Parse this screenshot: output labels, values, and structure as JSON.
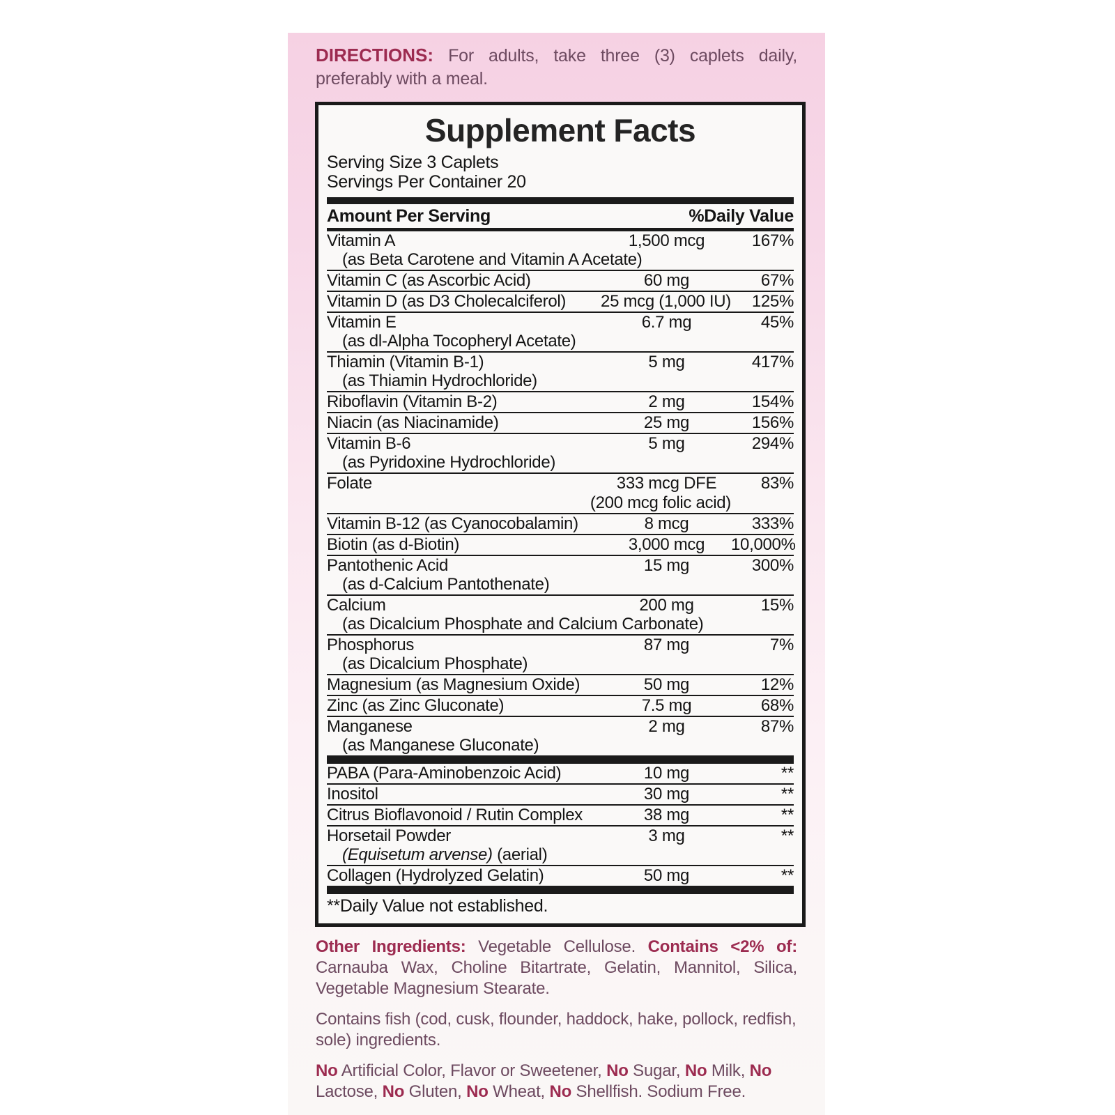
{
  "directions": {
    "label": "DIRECTIONS:",
    "text": "For adults, take three (3) caplets daily, preferably with a meal."
  },
  "facts": {
    "title": "Supplement Facts",
    "serving_size": "Serving Size 3 Caplets",
    "servings_per_container": "Servings Per Container 20",
    "columns": {
      "amount": "Amount Per Serving",
      "daily_value": "%Daily Value"
    },
    "rows": [
      {
        "name": "Vitamin A",
        "amount": "1,500 mcg",
        "dv": "167%",
        "sub": "(as Beta Carotene and Vitamin A Acetate)"
      },
      {
        "name": "Vitamin C (as Ascorbic Acid)",
        "amount": "60 mg",
        "dv": "67%"
      },
      {
        "name": "Vitamin D (as D3 Cholecalciferol)",
        "amount": "25 mcg (1,000 IU)",
        "dv": "125%"
      },
      {
        "name": "Vitamin E",
        "amount": "6.7 mg",
        "dv": "45%",
        "sub": "(as dl-Alpha Tocopheryl Acetate)"
      },
      {
        "name": "Thiamin (Vitamin B-1)",
        "amount": "5 mg",
        "dv": "417%",
        "sub": "(as Thiamin Hydrochloride)"
      },
      {
        "name": "Riboflavin (Vitamin B-2)",
        "amount": "2 mg",
        "dv": "154%"
      },
      {
        "name": "Niacin (as Niacinamide)",
        "amount": "25 mg",
        "dv": "156%"
      },
      {
        "name": "Vitamin B-6",
        "amount": "5 mg",
        "dv": "294%",
        "sub": "(as Pyridoxine Hydrochloride)"
      },
      {
        "name": "Folate",
        "amount": "333 mcg DFE",
        "dv": "83%",
        "amount_sub": "(200 mcg folic acid)"
      },
      {
        "name": "Vitamin B-12 (as Cyanocobalamin)",
        "amount": "8 mcg",
        "dv": "333%"
      },
      {
        "name": "Biotin (as d-Biotin)",
        "amount": "3,000 mcg",
        "dv": "10,000%"
      },
      {
        "name": "Pantothenic Acid",
        "amount": "15 mg",
        "dv": "300%",
        "sub": "(as d-Calcium Pantothenate)"
      },
      {
        "name": "Calcium",
        "amount": "200 mg",
        "dv": "15%",
        "sub": "(as Dicalcium Phosphate and Calcium Carbonate)"
      },
      {
        "name": "Phosphorus",
        "amount": "87 mg",
        "dv": "7%",
        "sub": "(as Dicalcium Phosphate)"
      },
      {
        "name": "Magnesium (as Magnesium Oxide)",
        "amount": "50 mg",
        "dv": "12%"
      },
      {
        "name": "Zinc (as Zinc Gluconate)",
        "amount": "7.5 mg",
        "dv": "68%"
      },
      {
        "name": "Manganese",
        "amount": "2 mg",
        "dv": "87%",
        "sub": "(as Manganese Gluconate)"
      }
    ],
    "rows_no_dv": [
      {
        "name": "PABA (Para-Aminobenzoic Acid)",
        "amount": "10 mg",
        "dv": "**"
      },
      {
        "name": "Inositol",
        "amount": "30 mg",
        "dv": "**"
      },
      {
        "name": "Citrus Bioflavonoid / Rutin Complex",
        "amount": "38 mg",
        "dv": "**"
      },
      {
        "name": "Horsetail Powder",
        "amount": "3 mg",
        "dv": "**",
        "sub_italic": "(Equisetum arvense)",
        "sub_rest": " (aerial)"
      },
      {
        "name": "Collagen (Hydrolyzed Gelatin)",
        "amount": "50 mg",
        "dv": "**"
      }
    ],
    "footnote": "**Daily Value not established."
  },
  "footer": {
    "other_ingredients_label": "Other Ingredients:",
    "other_ingredients_text": " Vegetable Cellulose. ",
    "contains_label": "Contains <2% of:",
    "contains_text": " Carnauba Wax, Choline Bitartrate, Gelatin, Mannitol, Silica, Vegetable Magnesium Stearate.",
    "fish_statement": "Contains fish (cod, cusk, flounder, haddock, hake, pollock, redfish, sole) ingredients.",
    "allergens": [
      {
        "no": "No",
        "text": " Artificial Color, Flavor or Sweetener, "
      },
      {
        "no": "No",
        "text": " Sugar, "
      },
      {
        "no": "No",
        "text": " Milk, "
      },
      {
        "no": "No",
        "text": " Lactose, "
      },
      {
        "no": "No",
        "text": " Gluten, "
      },
      {
        "no": "No",
        "text": " Wheat, "
      },
      {
        "no": "No",
        "text": " Shellfish. Sodium Free."
      }
    ]
  },
  "colors": {
    "accent_maroon": "#9c2b50",
    "body_plum": "#6d4a60",
    "pink_top": "#f6d1e3",
    "panel_bg": "#faf9f8",
    "ink": "#161616"
  }
}
